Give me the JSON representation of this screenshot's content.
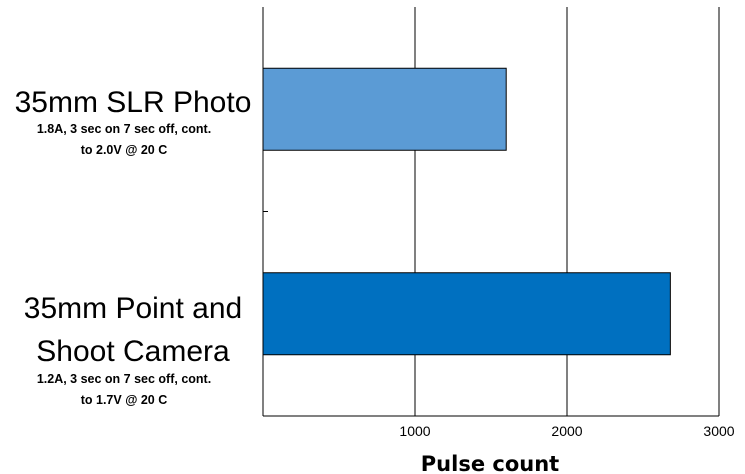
{
  "chart_data": {
    "type": "bar",
    "orientation": "horizontal",
    "xlabel": "Pulse count",
    "xlim": [
      0,
      3000
    ],
    "xticks": [
      1000,
      2000,
      3000
    ],
    "grid": true,
    "categories": [
      {
        "title_lines": [
          "35mm SLR Photo"
        ],
        "sub_lines": [
          "1.8A, 3 sec on 7 sec off, cont.",
          "to 2.0V @ 20 C"
        ],
        "value": 1600,
        "color": "#5b9bd5"
      },
      {
        "title_lines": [
          "35mm Point and",
          "Shoot Camera"
        ],
        "sub_lines": [
          "1.2A, 3 sec on 7 sec off, cont.",
          "to 1.7V @ 20 C"
        ],
        "value": 2680,
        "color": "#0070c0"
      }
    ]
  }
}
